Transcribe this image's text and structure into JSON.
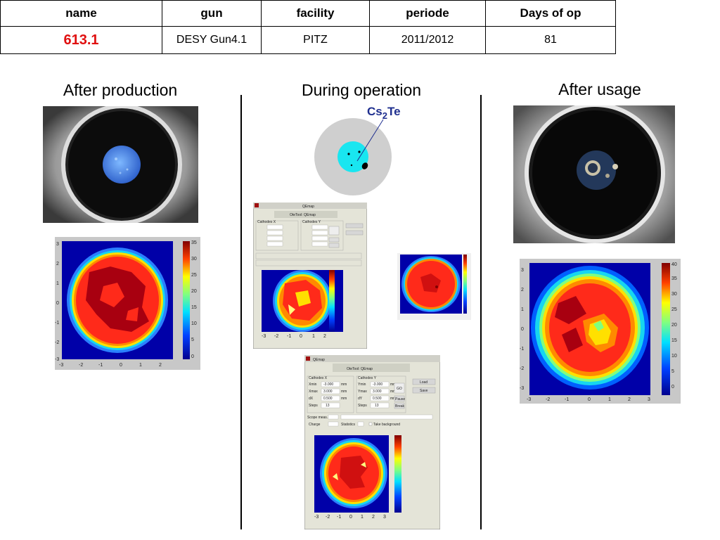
{
  "table": {
    "headers": [
      "name",
      "gun",
      "facility",
      "periode",
      "Days of op"
    ],
    "row": [
      "613.1",
      "DESY Gun4.1",
      "PITZ",
      "2011/2012",
      "81"
    ]
  },
  "columns": {
    "after_production": "After production",
    "during_operation": "During operation",
    "after_usage": "After usage"
  },
  "schematic": {
    "label_main": "Cs",
    "label_sub": "2",
    "label_end": "Te"
  },
  "qemap_window": {
    "title": "QEmap",
    "tool_title": "OteTool:  QEmap",
    "group_x": "Cathodes X",
    "group_y": "Cathodes Y",
    "xmin_label": "Xmin",
    "xmax_label": "Xmax",
    "dx_label": "dX",
    "steps_label": "Steps",
    "ymin_label": "Ymin",
    "ymax_label": "Ymax",
    "dy_label": "dY",
    "unit": "mm",
    "go": "GO",
    "load": "Load",
    "save": "Save",
    "pause": "Pause",
    "break": "Break",
    "scope_label": "Scope meas.",
    "charge_label": "Charge",
    "statistics_label": "Statistics",
    "take_bg": "Take background",
    "xmin_val": "-3.000",
    "xmax_val": "3.000",
    "dx_val": "0.500",
    "steps_val": "13",
    "ymin_val": "-3.000",
    "ymax_val": "3.000",
    "dy_val": "0.500",
    "ysteps_val": "13"
  },
  "map1_axes": {
    "y_ticks": [
      "3",
      "2",
      "1",
      "0",
      "-1",
      "-2",
      "-3"
    ],
    "x_ticks": [
      "-3",
      "-2",
      "-1",
      "0",
      "1",
      "2"
    ],
    "cb_ticks": [
      "35",
      "30",
      "25",
      "20",
      "15",
      "10",
      "5",
      "0"
    ]
  },
  "map3_axes": {
    "y_ticks": [
      "3",
      "2",
      "1",
      "0",
      "-1",
      "-2",
      "-3"
    ],
    "x_ticks": [
      "-3",
      "-2",
      "-1",
      "0",
      "1",
      "2",
      "3"
    ],
    "cb_ticks": [
      "40",
      "35",
      "30",
      "25",
      "20",
      "15",
      "10",
      "5",
      "0"
    ]
  },
  "colors": {
    "name_red": "#e01010",
    "cs2te_blue": "#1f2f8f",
    "cathode_cyan": "#19e6f0"
  }
}
